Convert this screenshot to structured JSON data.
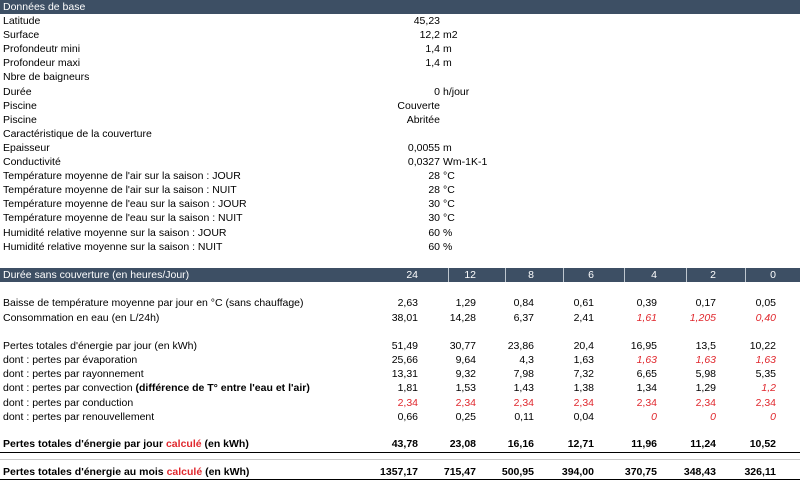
{
  "section1": {
    "title": "Données de base",
    "rows": [
      {
        "label": "Latitude",
        "value": "45,23",
        "unit": ""
      },
      {
        "label": "Surface",
        "value": "12,2",
        "unit": "m2"
      },
      {
        "label": "Profondeutr mini",
        "value": "1,4",
        "unit": "m"
      },
      {
        "label": "Profondeur maxi",
        "value": "1,4",
        "unit": "m"
      },
      {
        "label": "Nbre de baigneurs",
        "value": "",
        "unit": ""
      },
      {
        "label": "Durée",
        "value": "0",
        "unit": "h/jour"
      },
      {
        "label": "Piscine",
        "value": "Couverte",
        "unit": ""
      },
      {
        "label": "Piscine",
        "value": "Abritée",
        "unit": ""
      },
      {
        "label": "Caractéristique de la couverture",
        "value": "",
        "unit": ""
      },
      {
        "label": "Epaisseur",
        "value": "0,0055",
        "unit": "m"
      },
      {
        "label": "Conductivité",
        "value": "0,0327",
        "unit": "Wm-1K-1"
      },
      {
        "label": "Température moyenne de l'air sur la saison : JOUR",
        "value": "28",
        "unit": "°C"
      },
      {
        "label": "Température moyenne de l'air sur la saison : NUIT",
        "value": "28",
        "unit": "°C"
      },
      {
        "label": "Température moyenne de l'eau sur la saison : JOUR",
        "value": "30",
        "unit": "°C"
      },
      {
        "label": "Température moyenne de l'eau sur la saison : NUIT",
        "value": "30",
        "unit": "°C"
      },
      {
        "label": "Humidité relative moyenne sur la saison : JOUR",
        "value": "60",
        "unit": "%"
      },
      {
        "label": "Humidité relative moyenne sur la saison : NUIT",
        "value": "60",
        "unit": "%"
      }
    ]
  },
  "section2": {
    "title": "Durée sans couverture (en heures/Jour)",
    "columns": [
      "24",
      "12",
      "8",
      "6",
      "4",
      "2",
      "0"
    ],
    "rows": [
      {
        "label": "Baisse de température moyenne par jour en °C (sans chauffage)",
        "values": [
          "2,63",
          "1,29",
          "0,84",
          "0,61",
          "0,39",
          "0,17",
          "0,05"
        ],
        "style": [
          "",
          "",
          "",
          "",
          "",
          "",
          ""
        ]
      },
      {
        "label": "Consommation en eau (en L/24h)",
        "values": [
          "38,01",
          "14,28",
          "6,37",
          "2,41",
          "1,61",
          "1,205",
          "0,40"
        ],
        "style": [
          "",
          "",
          "",
          "",
          "redit",
          "redit",
          "redit"
        ]
      },
      {
        "label": "Pertes totales d'énergie par jour (en kWh)",
        "values": [
          "51,49",
          "30,77",
          "23,86",
          "20,4",
          "16,95",
          "13,5",
          "10,22"
        ],
        "style": [
          "",
          "",
          "",
          "",
          "",
          "",
          ""
        ]
      },
      {
        "label": "dont : pertes par évaporation",
        "values": [
          "25,66",
          "9,64",
          "4,3",
          "1,63",
          "1,63",
          "1,63",
          "1,63"
        ],
        "style": [
          "",
          "",
          "",
          "",
          "redit",
          "redit",
          "redit"
        ]
      },
      {
        "label": "dont : pertes par rayonnement",
        "values": [
          "13,31",
          "9,32",
          "7,98",
          "7,32",
          "6,65",
          "5,98",
          "5,35"
        ],
        "style": [
          "",
          "",
          "",
          "",
          "",
          "",
          ""
        ]
      },
      {
        "label_a": "dont : pertes par convection ",
        "label_b": "(différence de T° entre l'eau et l'air)",
        "values": [
          "1,81",
          "1,53",
          "1,43",
          "1,38",
          "1,34",
          "1,29",
          "1,2"
        ],
        "style": [
          "",
          "",
          "",
          "",
          "",
          "",
          "redit"
        ]
      },
      {
        "label": "dont : pertes par conduction",
        "values": [
          "2,34",
          "2,34",
          "2,34",
          "2,34",
          "2,34",
          "2,34",
          "2,34"
        ],
        "style": [
          "red",
          "red",
          "red",
          "red",
          "red",
          "red",
          "red"
        ]
      },
      {
        "label": "dont : pertes par renouvellement",
        "values": [
          "0,66",
          "0,25",
          "0,11",
          "0,04",
          "0",
          "0",
          "0"
        ],
        "style": [
          "",
          "",
          "",
          "",
          "redit",
          "redit",
          "redit"
        ]
      }
    ],
    "total_day": {
      "label_a": "Pertes totales d'énergie par jour ",
      "label_b": "calculé",
      "label_c": " (en kWh)",
      "values": [
        "43,78",
        "23,08",
        "16,16",
        "12,71",
        "11,96",
        "11,24",
        "10,52"
      ]
    },
    "total_month": {
      "label_a": "Pertes totales d'énergie au mois ",
      "label_b": "calculé",
      "label_c": " (en kWh)",
      "values": [
        "1357,17",
        "715,47",
        "500,95",
        "394,00",
        "370,75",
        "348,43",
        "326,11"
      ]
    }
  }
}
